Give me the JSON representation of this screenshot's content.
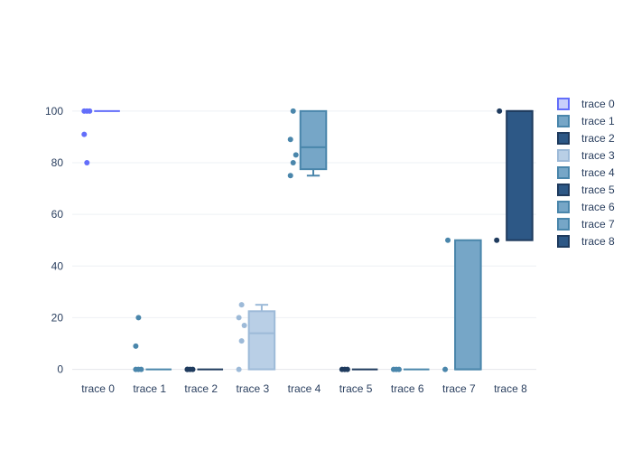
{
  "chart_data": {
    "type": "box",
    "title": "",
    "xlabel": "",
    "ylabel": "",
    "ylim": [
      -4,
      108
    ],
    "yticks": [
      0,
      20,
      40,
      60,
      80,
      100
    ],
    "grid": true,
    "legend_placement": "right",
    "categories": [
      "trace 0",
      "trace 1",
      "trace 2",
      "trace 3",
      "trace 4",
      "trace 5",
      "trace 6",
      "trace 7",
      "trace 8"
    ],
    "series": [
      {
        "name": "trace 0",
        "color": "#636efa",
        "fill": "#c9cffb",
        "q1": 100,
        "median": 100,
        "q3": 100,
        "whisker_low": 100,
        "whisker_high": 100,
        "points": [
          100,
          100,
          100,
          91,
          80
        ]
      },
      {
        "name": "trace 1",
        "color": "#4a86ab",
        "fill": "#76a6c7",
        "q1": 0,
        "median": 0,
        "q3": 0,
        "whisker_low": 0,
        "whisker_high": 0,
        "points": [
          0,
          0,
          0,
          9,
          20
        ]
      },
      {
        "name": "trace 2",
        "color": "#1f3b5e",
        "fill": "#2d5886",
        "q1": 0,
        "median": 0,
        "q3": 0,
        "whisker_low": 0,
        "whisker_high": 0,
        "points": [
          0,
          0,
          0,
          0
        ]
      },
      {
        "name": "trace 3",
        "color": "#9dbad8",
        "fill": "#b9cfe6",
        "q1": 0,
        "median": 14,
        "q3": 22.5,
        "whisker_low": 0,
        "whisker_high": 25,
        "points": [
          0,
          11,
          17,
          20,
          25
        ]
      },
      {
        "name": "trace 4",
        "color": "#4a86ab",
        "fill": "#76a6c7",
        "q1": 77.5,
        "median": 86,
        "q3": 100,
        "whisker_low": 75,
        "whisker_high": 100,
        "points": [
          75,
          80,
          83,
          89,
          100
        ]
      },
      {
        "name": "trace 5",
        "color": "#1f3b5e",
        "fill": "#2d5886",
        "q1": 0,
        "median": 0,
        "q3": 0,
        "whisker_low": 0,
        "whisker_high": 0,
        "points": [
          0,
          0,
          0
        ]
      },
      {
        "name": "trace 6",
        "color": "#4a86ab",
        "fill": "#76a6c7",
        "q1": 0,
        "median": 0,
        "q3": 0,
        "whisker_low": 0,
        "whisker_high": 0,
        "points": [
          0,
          0,
          0
        ]
      },
      {
        "name": "trace 7",
        "color": "#4a86ab",
        "fill": "#76a6c7",
        "q1": 0,
        "median": 0,
        "q3": 50,
        "whisker_low": 0,
        "whisker_high": 50,
        "points": [
          0,
          50
        ]
      },
      {
        "name": "trace 8",
        "color": "#1f3b5e",
        "fill": "#2d5886",
        "q1": 50,
        "median": 100,
        "q3": 100,
        "whisker_low": 50,
        "whisker_high": 100,
        "points": [
          50,
          100
        ]
      }
    ]
  }
}
